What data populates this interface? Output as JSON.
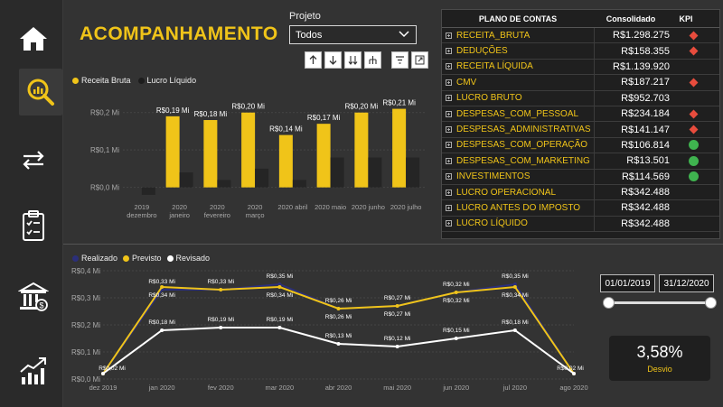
{
  "header": {
    "title": "ACOMPANHAMENTO"
  },
  "projeto": {
    "label": "Projeto",
    "value": "Todos"
  },
  "sidebar": {
    "items": [
      {
        "icon": "home-icon"
      },
      {
        "icon": "analytics-search-icon"
      },
      {
        "icon": "transfer-arrows-icon"
      },
      {
        "icon": "checklist-icon"
      },
      {
        "icon": "bank-icon"
      },
      {
        "icon": "growth-chart-icon"
      }
    ]
  },
  "colors": {
    "accent": "#f0c419",
    "dark_bar": "#252525",
    "navy": "#2b2f7a",
    "white_line": "#ffffff",
    "kpi_bad": "#e84c3d",
    "kpi_good": "#3fb34f"
  },
  "bar_chart_data": {
    "type": "bar",
    "legend": [
      "Receita Bruta",
      "Lucro Líquido"
    ],
    "yticks": [
      "R$0,2 Mi",
      "R$0,1 Mi",
      "R$0,0 Mi"
    ],
    "categories": [
      [
        "2019",
        "dezembro"
      ],
      [
        "2020",
        "janeiro"
      ],
      [
        "2020",
        "fevereiro"
      ],
      [
        "2020",
        "março"
      ],
      [
        "2020 abril"
      ],
      [
        "2020 maio"
      ],
      [
        "2020 junho"
      ],
      [
        "2020 julho"
      ]
    ],
    "series": [
      {
        "name": "Receita Bruta",
        "values": [
          0,
          0.19,
          0.18,
          0.2,
          0.14,
          0.17,
          0.2,
          0.21
        ]
      },
      {
        "name": "Lucro Líquido",
        "values": [
          -0.02,
          0.04,
          0.02,
          0.05,
          0.02,
          0.08,
          0.08,
          0.08
        ]
      }
    ],
    "labels": [
      "",
      "R$0,19 Mi",
      "R$0,18 Mi",
      "R$0,20 Mi",
      "R$0,14 Mi",
      "R$0,17 Mi",
      "R$0,20 Mi",
      "R$0,21 Mi"
    ],
    "ylim": [
      -0.025,
      0.25
    ]
  },
  "table": {
    "headers": {
      "account": "PLANO DE CONTAS",
      "consolidado": "Consolidado",
      "kpi": "KPI"
    },
    "rows": [
      {
        "name": "RECEITA_BRUTA",
        "value": "R$1.298.275",
        "kpi": "bad"
      },
      {
        "name": "DEDUÇÕES",
        "value": "R$158.355",
        "kpi": "bad"
      },
      {
        "name": "RECEITA LÍQUIDA",
        "value": "R$1.139.920",
        "kpi": ""
      },
      {
        "name": "CMV",
        "value": "R$187.217",
        "kpi": "bad"
      },
      {
        "name": "LUCRO BRUTO",
        "value": "R$952.703",
        "kpi": ""
      },
      {
        "name": "DESPESAS_COM_PESSOAL",
        "value": "R$234.184",
        "kpi": "bad"
      },
      {
        "name": "DESPESAS_ADMINISTRATIVAS",
        "value": "R$141.147",
        "kpi": "bad"
      },
      {
        "name": "DESPESAS_COM_OPERAÇÃO",
        "value": "R$106.814",
        "kpi": "good"
      },
      {
        "name": "DESPESAS_COM_MARKETING",
        "value": "R$13.501",
        "kpi": "good"
      },
      {
        "name": "INVESTIMENTOS",
        "value": "R$114.569",
        "kpi": "good"
      },
      {
        "name": "LUCRO OPERACIONAL",
        "value": "R$342.488",
        "kpi": ""
      },
      {
        "name": "LUCRO ANTES DO IMPOSTO",
        "value": "R$342.488",
        "kpi": ""
      },
      {
        "name": "LUCRO LÍQUIDO",
        "value": "R$342.488",
        "kpi": ""
      }
    ]
  },
  "chart_data": {
    "type": "line",
    "legend": [
      "Realizado",
      "Previsto",
      "Revisado"
    ],
    "yticks": [
      "R$0,4 Mi",
      "R$0,3 Mi",
      "R$0,2 Mi",
      "R$0,1 Mi",
      "R$0,0 Mi"
    ],
    "ylim": [
      0,
      0.4
    ],
    "x": [
      "dez 2019",
      "jan 2020",
      "fev 2020",
      "mar 2020",
      "abr 2020",
      "mai 2020",
      "jun 2020",
      "jul 2020",
      "ago 2020"
    ],
    "series": [
      {
        "name": "Realizado",
        "values": [
          0.02,
          0.33,
          0.33,
          0.35,
          0.26,
          0.27,
          0.32,
          0.35,
          0.02
        ],
        "labels": [
          "",
          "R$0,33 Mi",
          "R$0,33 Mi",
          "R$0,35 Mi",
          "R$0,26 Mi",
          "R$0,27 Mi",
          "R$0,32 Mi",
          "R$0,35 Mi",
          ""
        ]
      },
      {
        "name": "Previsto",
        "values": [
          0.02,
          0.34,
          0.33,
          0.34,
          0.26,
          0.27,
          0.32,
          0.34,
          0.02
        ],
        "labels": [
          "R$0,02 Mi",
          "R$0,34 Mi",
          "",
          "R$0,34 Mi",
          "R$0,26 Mi",
          "R$0,27 Mi",
          "R$0,32 Mi",
          "R$0,34 Mi",
          "R$0,02 Mi"
        ]
      },
      {
        "name": "Revisado",
        "values": [
          0.02,
          0.18,
          0.19,
          0.19,
          0.13,
          0.12,
          0.15,
          0.18,
          0.02
        ],
        "labels": [
          "",
          "R$0,18 Mi",
          "R$0,19 Mi",
          "R$0,19 Mi",
          "R$0,13 Mi",
          "R$0,12 Mi",
          "R$0,15 Mi",
          "R$0,18 Mi",
          ""
        ]
      }
    ]
  },
  "date_range": {
    "start": "01/01/2019",
    "end": "31/12/2020"
  },
  "desvio": {
    "value": "3,58%",
    "label": "Desvio"
  }
}
